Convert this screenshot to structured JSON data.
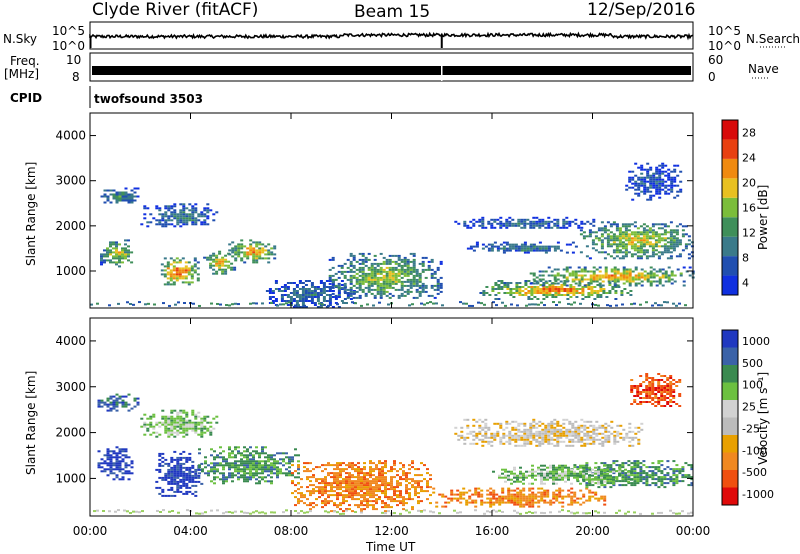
{
  "header": {
    "station": "Clyde River (fitACF)",
    "beam": "Beam 15",
    "date": "12/Sep/2016"
  },
  "strips": {
    "nsky_label": "N.Sky",
    "nsky_ticks": [
      "10^5",
      "10^0"
    ],
    "nsearch_label": "N.Search",
    "nsearch_ticks": [
      "10^5",
      "10^0"
    ],
    "freq_label_line1": "Freq.",
    "freq_label_line2": "[MHz]",
    "freq_ticks": [
      "10",
      "8"
    ],
    "nave_label": "Nave",
    "nave_ticks": [
      "60",
      "0"
    ],
    "cpid_label": "CPID",
    "cpid_value": "twofsound 3503"
  },
  "colors": {
    "power": [
      "#1030e0",
      "#204fb0",
      "#3a7a8a",
      "#3f8f5a",
      "#7bbd3a",
      "#e8c020",
      "#f08a10",
      "#e84010",
      "#d80a0a"
    ],
    "velocity": [
      "#e00a0a",
      "#f05010",
      "#f08820",
      "#e8a000",
      "#bcbcbc",
      "#d2d2d2",
      "#6cc040",
      "#3a8a50",
      "#3a62a8",
      "#2038c0"
    ]
  },
  "chart_data": [
    {
      "type": "heatmap",
      "name": "power",
      "ylabel": "Slant Range [km]",
      "xlabel": "",
      "x_ticks": [
        "00:00",
        "04:00",
        "08:00",
        "12:00",
        "16:00",
        "20:00",
        "00:00"
      ],
      "x_hours": [
        0,
        4,
        8,
        12,
        16,
        20,
        24
      ],
      "y_ticks": [
        1000,
        2000,
        3000,
        4000
      ],
      "ylim": [
        180,
        4500
      ],
      "colorbar_label": "Power [dB]",
      "colorbar_ticks": [
        4,
        8,
        12,
        16,
        20,
        24,
        28
      ],
      "colorbar_range": [
        0,
        32
      ],
      "blobs": [
        {
          "t": [
            0.3,
            1.9
          ],
          "r": [
            2500,
            2850
          ],
          "v": 12
        },
        {
          "t": [
            0.4,
            1.7
          ],
          "r": [
            1100,
            1700
          ],
          "v": 20
        },
        {
          "t": [
            2.7,
            4.3
          ],
          "r": [
            700,
            1300
          ],
          "v": 28
        },
        {
          "t": [
            4.5,
            5.8
          ],
          "r": [
            950,
            1450
          ],
          "v": 22
        },
        {
          "t": [
            5.5,
            7.3
          ],
          "r": [
            1200,
            1700
          ],
          "v": 24
        },
        {
          "t": [
            2.0,
            5.0
          ],
          "r": [
            2000,
            2500
          ],
          "v": 10
        },
        {
          "t": [
            7.0,
            10.5
          ],
          "r": [
            200,
            800
          ],
          "v": 8
        },
        {
          "t": [
            9.5,
            14.0
          ],
          "r": [
            400,
            1400
          ],
          "v": 18
        },
        {
          "t": [
            15.5,
            21.5
          ],
          "r": [
            400,
            800
          ],
          "v": 26
        },
        {
          "t": [
            17.5,
            24.0
          ],
          "r": [
            700,
            1100
          ],
          "v": 24
        },
        {
          "t": [
            19.5,
            24.0
          ],
          "r": [
            1300,
            2100
          ],
          "v": 20
        },
        {
          "t": [
            14.5,
            20.0
          ],
          "r": [
            1950,
            2200
          ],
          "v": 8
        },
        {
          "t": [
            15.0,
            19.5
          ],
          "r": [
            1400,
            1650
          ],
          "v": 10
        },
        {
          "t": [
            21.3,
            23.5
          ],
          "r": [
            2600,
            3400
          ],
          "v": 6
        }
      ]
    },
    {
      "type": "heatmap",
      "name": "velocity",
      "ylabel": "Slant Range [km]",
      "xlabel": "Time UT",
      "x_ticks": [
        "00:00",
        "04:00",
        "08:00",
        "12:00",
        "16:00",
        "20:00",
        "00:00"
      ],
      "x_hours": [
        0,
        4,
        8,
        12,
        16,
        20,
        24
      ],
      "y_ticks": [
        1000,
        2000,
        3000,
        4000
      ],
      "ylim": [
        180,
        4500
      ],
      "colorbar_label": "Velocity [m s⁻¹]",
      "colorbar_ticks": [
        1000,
        500,
        100,
        25,
        -25,
        -100,
        -500,
        -1000
      ],
      "blobs": [
        {
          "t": [
            0.3,
            1.9
          ],
          "r": [
            2500,
            2850
          ],
          "v": 8
        },
        {
          "t": [
            0.3,
            1.7
          ],
          "r": [
            1000,
            1700
          ],
          "v": 9
        },
        {
          "t": [
            2.6,
            4.4
          ],
          "r": [
            600,
            1600
          ],
          "v": 9
        },
        {
          "t": [
            4.3,
            8.3
          ],
          "r": [
            900,
            1700
          ],
          "v": 7
        },
        {
          "t": [
            2.0,
            5.0
          ],
          "r": [
            1900,
            2500
          ],
          "v": 6
        },
        {
          "t": [
            8.0,
            13.5
          ],
          "r": [
            300,
            1400
          ],
          "v": 2
        },
        {
          "t": [
            13.5,
            20.5
          ],
          "r": [
            400,
            800
          ],
          "v": 2
        },
        {
          "t": [
            14.5,
            22.0
          ],
          "r": [
            1700,
            2300
          ],
          "v": 4
        },
        {
          "t": [
            19.0,
            24.0
          ],
          "r": [
            800,
            1400
          ],
          "v": 7
        },
        {
          "t": [
            21.5,
            23.5
          ],
          "r": [
            2600,
            3300
          ],
          "v": 1
        },
        {
          "t": [
            16.0,
            21.5
          ],
          "r": [
            900,
            1300
          ],
          "v": 6
        }
      ]
    }
  ]
}
